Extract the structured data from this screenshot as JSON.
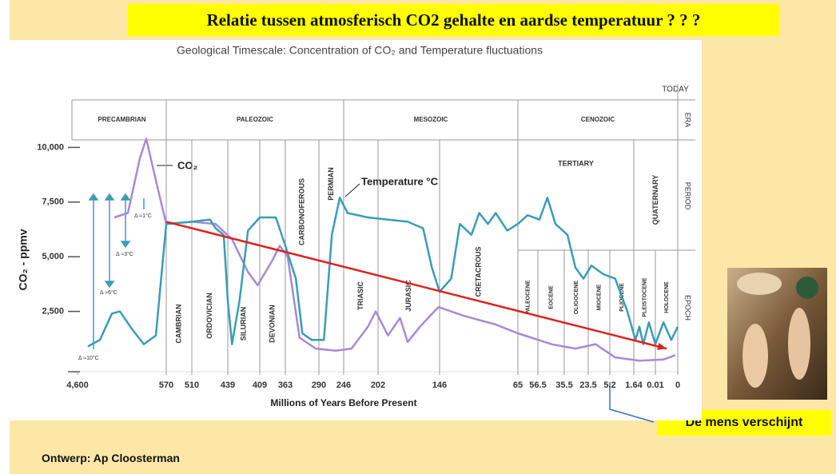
{
  "slide": {
    "title": "Relatie tussen atmosferisch CO2 gehalte en aardse temperatuur ? ? ?",
    "callout": "De mens verschijnt",
    "credit": "Ontwerp: Ap Cloosterman"
  },
  "chart_data": {
    "type": "line",
    "title": "Geological Timescale: Concentration of CO₂ and Temperature fluctuations",
    "ylabel": "CO₂ - ppmv",
    "xlabel": "Millions of Years Before Present",
    "xlim": [
      4600,
      0
    ],
    "xticks": [
      {
        "value": 4600,
        "label": "4,600"
      },
      570,
      510,
      439,
      409,
      363,
      290,
      246,
      202,
      146,
      65,
      56.5,
      35.5,
      23.5,
      5.2,
      1.64,
      0.01,
      0
    ],
    "ylim": [
      0,
      10600
    ],
    "yticks": [
      {
        "value": 2500,
        "label": "2,500"
      },
      {
        "value": 5000,
        "label": "5,000"
      },
      {
        "value": 7500,
        "label": "7,500"
      },
      {
        "value": 10000,
        "label": "10,000"
      }
    ],
    "series": [
      {
        "name": "CO₂",
        "color": "#a58bd8",
        "x": [
          2930,
          2313,
          1768,
          1478,
          1042,
          570,
          510,
          463,
          435,
          420,
          411,
          387,
          373,
          358,
          332,
          297,
          260,
          236,
          215,
          205,
          193,
          182,
          175,
          164,
          147,
          121,
          88,
          65,
          45.7,
          29.9,
          17.4,
          4.4,
          1.22,
          0.0064,
          0.0011
        ],
        "values": [
          6800,
          7000,
          9500,
          10400,
          8500,
          6500,
          6600,
          6500,
          5800,
          4300,
          3700,
          4800,
          5500,
          5000,
          1300,
          800,
          700,
          800,
          1800,
          2500,
          1400,
          2200,
          1100,
          1800,
          2700,
          2300,
          1900,
          1500,
          1000,
          800,
          1000,
          400,
          250,
          300,
          500
        ]
      },
      {
        "name": "Temperature °C",
        "color": "#3a9db5",
        "x": [
          4128,
          3583,
          3039,
          2676,
          2131,
          1587,
          1042,
          570,
          510,
          474,
          463,
          447,
          439,
          435,
          428,
          420,
          409,
          380,
          363,
          340,
          326,
          306,
          281,
          267,
          253,
          241,
          215,
          193,
          175,
          161,
          153,
          146,
          134,
          125,
          113,
          105,
          96,
          88,
          76,
          65,
          60.9,
          55.2,
          48.9,
          42.5,
          33.9,
          29.9,
          25.9,
          20.8,
          10.6,
          4.4,
          2.59,
          1.52,
          1.22,
          0.92,
          0.5,
          0.01,
          0.0064,
          0.0029,
          0
        ],
        "values": [
          900,
          1200,
          2400,
          2500,
          1700,
          1000,
          1400,
          6500,
          6600,
          6700,
          6300,
          6000,
          3000,
          1000,
          3000,
          6200,
          6800,
          6800,
          5500,
          4000,
          1500,
          1200,
          1200,
          6000,
          7700,
          7000,
          6800,
          6700,
          6600,
          6300,
          4500,
          3400,
          4000,
          6500,
          6000,
          7000,
          6500,
          7000,
          6200,
          6500,
          6900,
          6700,
          7700,
          6500,
          6000,
          4500,
          4000,
          4600,
          4200,
          4000,
          2500,
          1200,
          1800,
          1000,
          2000,
          1000,
          2000,
          1200,
          1800
        ]
      }
    ],
    "trend": {
      "color": "#e02020",
      "x": [
        570,
        0.005
      ],
      "values": [
        6600,
        800
      ]
    },
    "today_label": "TODAY",
    "row_labels": [
      "ERA",
      "PERIOD",
      "EPOCH"
    ],
    "eras": [
      {
        "name": "PRECAMBRIAN",
        "from": 4600,
        "to": 570
      },
      {
        "name": "PALEOZOIC",
        "from": 570,
        "to": 246
      },
      {
        "name": "MESOZOIC",
        "from": 246,
        "to": 65
      },
      {
        "name": "CENOZOIC",
        "from": 65,
        "to": 0
      }
    ],
    "periods": [
      {
        "name": "CAMBRIAN",
        "from": 570,
        "to": 510
      },
      {
        "name": "ORDOVICIAN",
        "from": 510,
        "to": 439
      },
      {
        "name": "SILURIAN",
        "from": 439,
        "to": 409
      },
      {
        "name": "DEVONIAN",
        "from": 409,
        "to": 363
      },
      {
        "name": "CARBONOFEROUS",
        "from": 363,
        "to": 290
      },
      {
        "name": "PERMIAN",
        "from": 290,
        "to": 246
      },
      {
        "name": "TRIASIC",
        "from": 246,
        "to": 202
      },
      {
        "name": "JURASIC",
        "from": 202,
        "to": 146
      },
      {
        "name": "CRETACROUS",
        "from": 146,
        "to": 65
      },
      {
        "name": "TERTIARY",
        "from": 65,
        "to": 1.64
      },
      {
        "name": "QUATERNARY",
        "from": 1.64,
        "to": 0
      }
    ],
    "epochs": [
      {
        "name": "PALEOCENE",
        "from": 65,
        "to": 56.5
      },
      {
        "name": "EOCENE",
        "from": 56.5,
        "to": 35.5
      },
      {
        "name": "OLIGOCENE",
        "from": 35.5,
        "to": 23.5
      },
      {
        "name": "MIOCENE",
        "from": 23.5,
        "to": 5.2
      },
      {
        "name": "PLIOCENE",
        "from": 5.2,
        "to": 1.64
      },
      {
        "name": "PLEISTOCENE",
        "from": 1.64,
        "to": 0.01
      },
      {
        "name": "HOLOCENE",
        "from": 0.01,
        "to": 0
      }
    ],
    "deltas": [
      "Δ ≈10°C",
      "Δ ≈6°C",
      "Δ ≈3°C",
      "Δ ≈1°C"
    ]
  }
}
